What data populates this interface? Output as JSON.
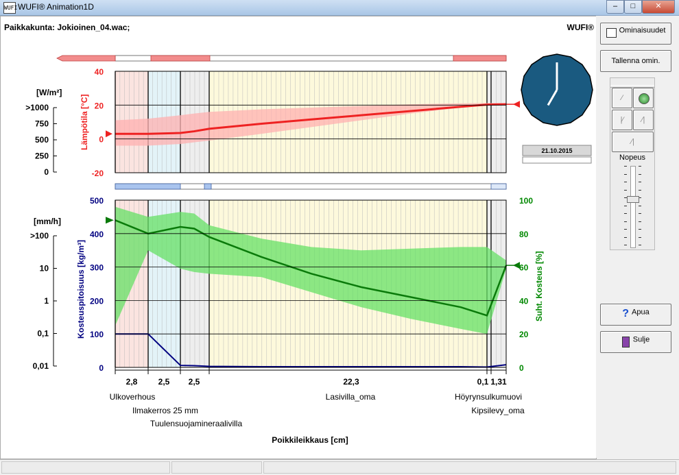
{
  "window": {
    "title": "WUFI® Animation1D",
    "app_icon_text": "WUFI"
  },
  "header": {
    "location": "Paikkakunta: Jokioinen_04.wac;",
    "brand": "WUFI®"
  },
  "sidebar": {
    "properties_button": "Ominaisuudet",
    "save_properties_button": "Tallenna omin.",
    "speed_label": "Nopeus",
    "help_button": "Apua",
    "close_button": "Sulje",
    "speed_level": 0.6
  },
  "clock": {
    "date": "21.10.2015",
    "hour": 7,
    "minute": 0
  },
  "colors": {
    "temperature": "#ee2222",
    "water_content": "#000080",
    "rel_humidity": "#008800",
    "band_red": "#f28c8c",
    "band_blue": "#a9c4ee",
    "layer_pink": "#fbe4e0",
    "layer_cyan": "#e3f3f8",
    "layer_grey": "#eeeeee",
    "layer_yellow": "#fdf9dc"
  },
  "layers": [
    {
      "thickness": "2,8",
      "name": "Ulkoverhous",
      "width_cm": 2.8,
      "color": "#fbe4e0"
    },
    {
      "thickness": "2,5",
      "name": "Ilmakerros 25 mm",
      "width_cm": 2.5,
      "color": "#e3f3f8"
    },
    {
      "thickness": "2,5",
      "name": "Tuulensuojamineraalivilla",
      "width_cm": 2.5,
      "color": "#eeeeee"
    },
    {
      "thickness": "22,3",
      "name": "Lasivilla_oma",
      "width_cm": 22.3,
      "color": "#fdf9dc"
    },
    {
      "thickness": "0,1",
      "name": "Höyrynsulkumuovi",
      "width_cm": 0.1,
      "color": "#eeeeee"
    },
    {
      "thickness": "1,31",
      "name": "Kipsilevy_oma",
      "width_cm": 1.31,
      "color": "#eeeeee"
    }
  ],
  "xaxis": {
    "label": "Poikkileikkaus [cm]"
  },
  "chart_data": [
    {
      "type": "line",
      "ylabel": "Lämpötila [°C]",
      "ylim": [
        -20,
        40
      ],
      "yticks": [
        "40",
        "20",
        "0",
        "-20"
      ],
      "x_cm": [
        0,
        2.8,
        5.3,
        6.5,
        7.8,
        12,
        16,
        20,
        24,
        28,
        30.1,
        31.51
      ],
      "series": [
        {
          "name": "current",
          "values": [
            3,
            3,
            3.5,
            4.5,
            6,
            9,
            11.5,
            14,
            16.5,
            19,
            20.3,
            20.5
          ]
        },
        {
          "name": "max",
          "values": [
            11,
            12,
            14,
            15,
            16,
            17.5,
            18.5,
            19.5,
            20.5,
            21,
            21.2,
            21.2
          ]
        },
        {
          "name": "min",
          "values": [
            -4,
            -4,
            -3,
            -2,
            -1,
            3,
            7,
            11,
            15,
            18.5,
            20,
            20.2
          ]
        }
      ],
      "left_scale": {
        "label": "[W/m²]",
        "ticks": [
          ">1000",
          "750",
          "500",
          "250",
          "0"
        ]
      }
    },
    {
      "type": "line",
      "ylabel": "Kosteuspitoisuus [kg/m³]",
      "ylabel_right": "Suht. Kosteus [%]",
      "ylim": [
        0,
        500
      ],
      "ylim_right": [
        0,
        100
      ],
      "yticks": [
        "500",
        "400",
        "300",
        "200",
        "100",
        "0"
      ],
      "yticks_right": [
        "100",
        "80",
        "60",
        "40",
        "20",
        "0"
      ],
      "x_cm": [
        0,
        2.8,
        5.3,
        6.5,
        7.8,
        12,
        16,
        20,
        24,
        28,
        30.1,
        31.51
      ],
      "series": [
        {
          "name": "rh_current",
          "axis": "right",
          "values": [
            88,
            80,
            84,
            83,
            78,
            66,
            56,
            48,
            42,
            36,
            31,
            61
          ]
        },
        {
          "name": "rh_max",
          "axis": "right",
          "values": [
            96,
            90,
            93,
            92,
            85,
            77,
            72,
            70,
            71,
            72,
            72,
            64
          ]
        },
        {
          "name": "rh_min",
          "axis": "right",
          "values": [
            25,
            70,
            59,
            57,
            56,
            54,
            45,
            36,
            29,
            23,
            20,
            59
          ]
        },
        {
          "name": "water_content",
          "axis": "left",
          "values": [
            100,
            100,
            6,
            5,
            3,
            2,
            2,
            2,
            2,
            2,
            1,
            8
          ]
        }
      ],
      "left_scale": {
        "label": "[mm/h]",
        "ticks": [
          ">100",
          "10",
          "1",
          "0,1",
          "0,01"
        ]
      }
    }
  ]
}
